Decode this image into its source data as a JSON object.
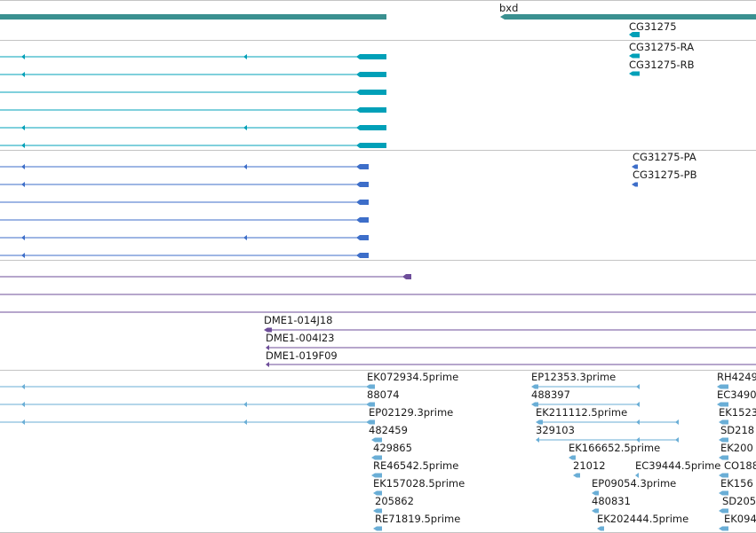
{
  "tracks": {
    "gene": {
      "name": "bxd",
      "sub_name": "CG31275",
      "color": "#3a9090"
    },
    "transcripts": {
      "color": "#00a0b8",
      "labels": [
        "CG31275-RA",
        "CG31275-RB"
      ]
    },
    "proteins": {
      "color": "#3d6ec9",
      "labels": [
        "CG31275-PA",
        "CG31275-PB"
      ]
    },
    "clones": {
      "color": "#6e4e9a",
      "labels": [
        "DME1-014J18",
        "DME1-004I23",
        "DME1-019F09"
      ]
    },
    "ests": {
      "color": "#6aaed6",
      "col1": [
        "EK072934.5prime",
        "88074",
        "EP02129.3prime",
        "482459",
        "429865",
        "RE46542.5prime",
        "EK157028.5prime",
        "205862",
        "RE71819.5prime"
      ],
      "col2": [
        "EP12353.3prime",
        "488397",
        "EK211112.5prime",
        "329103",
        "EK166652.5prime",
        "21012",
        "EC39444.5prime",
        "EP09054.3prime",
        "480831",
        "EK202444.5prime"
      ],
      "col3": [
        "RH4249",
        "EC3490",
        "EK1523",
        "SD218",
        "EK200",
        "CO188",
        "EK156",
        "SD205",
        "EK094"
      ]
    }
  }
}
